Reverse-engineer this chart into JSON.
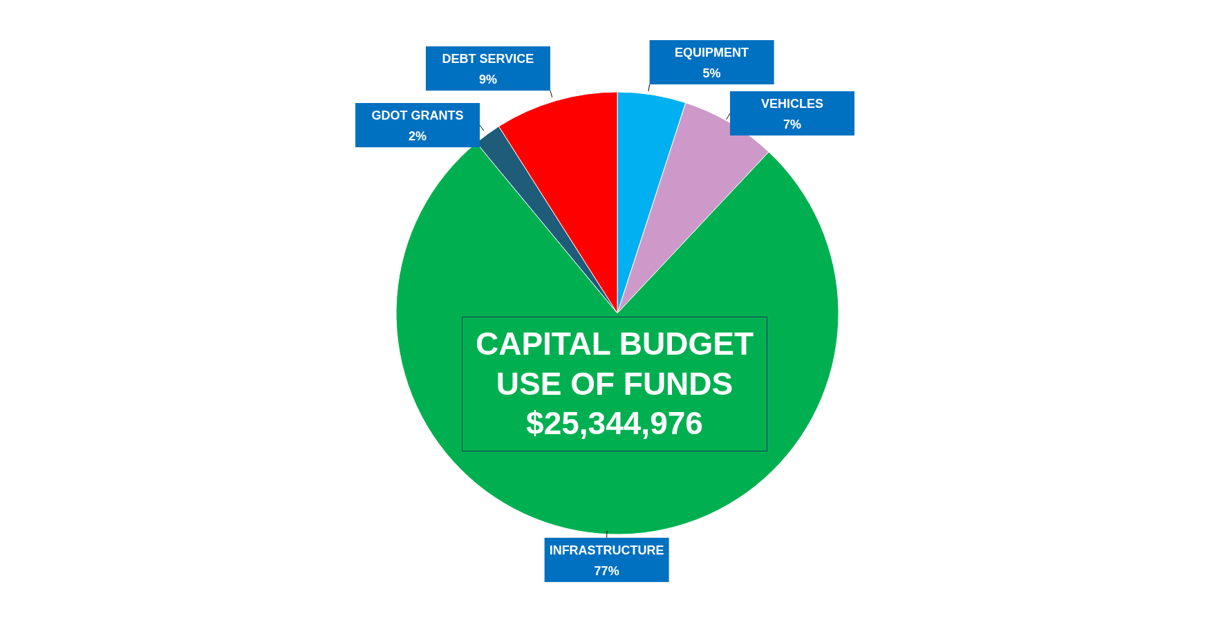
{
  "chart_data": {
    "type": "pie",
    "title": "CAPITAL BUDGET USE OF FUNDS",
    "subtitle": "$25,344,976",
    "categories": [
      "EQUIPMENT",
      "VEHICLES",
      "INFRASTRUCTURE",
      "GDOT GRANTS",
      "DEBT SERVICE"
    ],
    "values": [
      5,
      7,
      77,
      2,
      9
    ],
    "value_labels": [
      "5%",
      "7%",
      "77%",
      "2%",
      "9%"
    ],
    "colors": [
      "#00b0f0",
      "#cc99c9",
      "#00b050",
      "#1f5c7a",
      "#ff0000"
    ],
    "legend": false
  }
}
